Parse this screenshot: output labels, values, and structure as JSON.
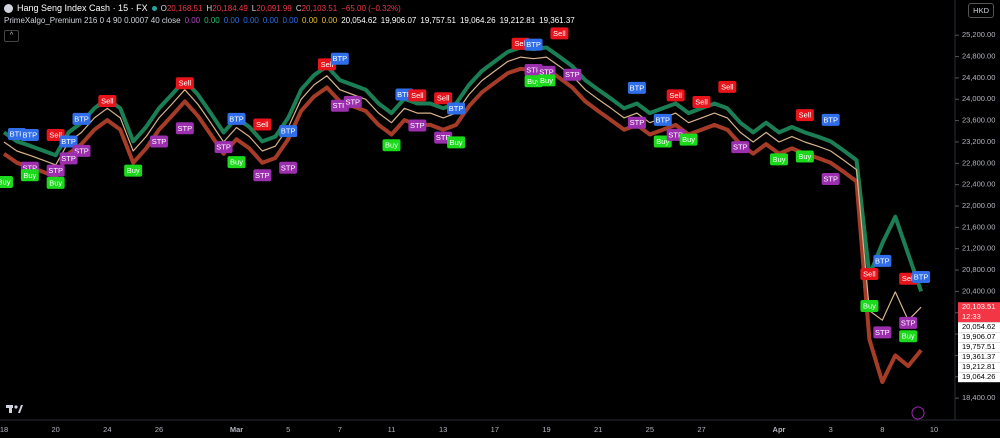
{
  "header": {
    "symbol": "Hang Seng Index Cash · 15 · FX",
    "ohlc": [
      {
        "label": "O",
        "value": "20,168.51"
      },
      {
        "label": "H",
        "value": "20,184.49"
      },
      {
        "label": "L",
        "value": "20,091.99"
      },
      {
        "label": "C",
        "value": "20,103.51"
      }
    ],
    "change": "−65.00 (−0.32%)",
    "indicator": "PrimeXalgo_Premium 216 0 4 90 0.0007 40 close",
    "indicator_values": [
      {
        "text": "0.00",
        "color": "#ab47bc"
      },
      {
        "text": "0.00",
        "color": "#26c06b"
      },
      {
        "text": "0.00",
        "color": "#2f6ee8"
      },
      {
        "text": "0.00",
        "color": "#2f6ee8"
      },
      {
        "text": "0.00",
        "color": "#2f6ee8"
      },
      {
        "text": "0.00",
        "color": "#2f6ee8"
      },
      {
        "text": "0.00",
        "color": "#e6c229"
      },
      {
        "text": "0.00",
        "color": "#e6c229"
      },
      {
        "text": "20,054.62",
        "color": "#ffffff"
      },
      {
        "text": "19,906.07",
        "color": "#ffffff"
      },
      {
        "text": "19,757.51",
        "color": "#ffffff"
      },
      {
        "text": "19,064.26",
        "color": "#ffffff"
      },
      {
        "text": "19,212.81",
        "color": "#ffffff"
      },
      {
        "text": "19,361.37",
        "color": "#ffffff"
      }
    ],
    "currency": "HKD"
  },
  "chart_data": {
    "type": "line",
    "categories": [
      "18",
      null,
      null,
      null,
      "20",
      null,
      null,
      null,
      "24",
      null,
      null,
      null,
      "26",
      null,
      null,
      null,
      null,
      null,
      "Mar",
      null,
      null,
      null,
      "5",
      null,
      null,
      null,
      "7",
      null,
      null,
      null,
      "11",
      null,
      null,
      null,
      "13",
      null,
      null,
      null,
      "17",
      null,
      null,
      null,
      "19",
      null,
      null,
      null,
      "21",
      null,
      null,
      null,
      "25",
      null,
      null,
      null,
      "27",
      null,
      null,
      null,
      null,
      null,
      "Apr",
      null,
      null,
      null,
      "3",
      null,
      null,
      null,
      "8",
      null,
      null,
      null,
      "10"
    ],
    "series": [
      {
        "color": "#1e8c5e",
        "values": [
          23380,
          23210,
          23130,
          23040,
          22950,
          23380,
          23560,
          23830,
          24010,
          23830,
          23210,
          23480,
          23830,
          24090,
          24360,
          24090,
          23740,
          23380,
          23650,
          23480,
          23210,
          23300,
          23650,
          24180,
          24450,
          24620,
          24360,
          24270,
          24180,
          23920,
          23740,
          24010,
          23920,
          23920,
          23830,
          23920,
          24270,
          24530,
          24710,
          24890,
          24970,
          24940,
          24970,
          24800,
          24620,
          24360,
          24180,
          24010,
          23830,
          23920,
          23740,
          23830,
          23920,
          23740,
          23830,
          23920,
          23830,
          23560,
          23380,
          23560,
          23380,
          23480,
          23380,
          23300,
          23210,
          23040,
          22860,
          20700,
          21300,
          21800,
          21100,
          20400,
          null
        ]
      },
      {
        "color": "#b8432c",
        "values": [
          22980,
          22810,
          22730,
          22640,
          22550,
          22980,
          23160,
          23430,
          23610,
          23430,
          22810,
          23080,
          23430,
          23690,
          23960,
          23690,
          23340,
          22980,
          23250,
          23080,
          22810,
          22900,
          23250,
          23780,
          24050,
          24220,
          23960,
          23870,
          23780,
          23520,
          23340,
          23610,
          23520,
          23520,
          23430,
          23520,
          23870,
          24130,
          24310,
          24490,
          24570,
          24540,
          24570,
          24400,
          24220,
          23960,
          23780,
          23610,
          23430,
          23520,
          23340,
          23430,
          23520,
          23340,
          23430,
          23520,
          23430,
          23160,
          22980,
          23160,
          22980,
          23080,
          22980,
          22900,
          22810,
          22640,
          22460,
          19500,
          18700,
          19200,
          19000,
          19300,
          null
        ]
      },
      {
        "color": "#d9b38c",
        "values": [
          23200,
          23030,
          22950,
          22860,
          22770,
          23200,
          23380,
          23650,
          23830,
          23650,
          23030,
          23300,
          23650,
          23910,
          24180,
          23910,
          23560,
          23200,
          23470,
          23300,
          23030,
          23120,
          23470,
          24000,
          24270,
          24440,
          24180,
          24090,
          24000,
          23740,
          23560,
          23830,
          23740,
          23740,
          23650,
          23740,
          24090,
          24350,
          24530,
          24710,
          24790,
          24760,
          24790,
          24620,
          24440,
          24180,
          24000,
          23830,
          23650,
          23740,
          23560,
          23650,
          23740,
          23560,
          23650,
          23740,
          23650,
          23380,
          23200,
          23380,
          23200,
          23300,
          23200,
          23120,
          23030,
          22860,
          22680,
          20040,
          19860,
          20390,
          19860,
          20103.51,
          null
        ]
      }
    ],
    "ylim": [
      17990,
      25860
    ],
    "yticks": [
      {
        "value": 18400,
        "label": "18,400.00"
      },
      {
        "value": 18800,
        "label": "18,800.00"
      },
      {
        "value": 19200,
        "label": "19,200.00"
      },
      {
        "value": 19600,
        "label": "19,600.00"
      },
      {
        "value": 20000,
        "label": "20,000.00"
      },
      {
        "value": 20400,
        "label": "20,400.00"
      },
      {
        "value": 20800,
        "label": "20,800.00"
      },
      {
        "value": 21200,
        "label": "21,200.00"
      },
      {
        "value": 21600,
        "label": "21,600.00"
      },
      {
        "value": 22000,
        "label": "22,000.00"
      },
      {
        "value": 22400,
        "label": "22,400.00"
      },
      {
        "value": 22800,
        "label": "22,800.00"
      },
      {
        "value": 23200,
        "label": "23,200.00"
      },
      {
        "value": 23600,
        "label": "23,600.00"
      },
      {
        "value": 24000,
        "label": "24,000.00"
      },
      {
        "value": 24400,
        "label": "24,400.00"
      },
      {
        "value": 24800,
        "label": "24,800.00"
      },
      {
        "value": 25200,
        "label": "25,200.00"
      }
    ],
    "grid": false,
    "price_labels": [
      {
        "value": 20103.51,
        "label": "20,103.51",
        "color": "#f23645",
        "sub": "12:33"
      },
      {
        "value": 20054.62,
        "label": "20,054.62",
        "color": "#ffffff"
      },
      {
        "value": 19906.07,
        "label": "19,906.07",
        "color": "#ffffff"
      },
      {
        "value": 19757.51,
        "label": "19,757.51",
        "color": "#ffffff"
      },
      {
        "value": 19361.37,
        "label": "19,361.37",
        "color": "#ffffff"
      },
      {
        "value": 19212.81,
        "label": "19,212.81",
        "color": "#ffffff"
      },
      {
        "value": 19064.26,
        "label": "19,064.26",
        "color": "#ffffff"
      }
    ],
    "label_colors": {
      "Sell": "#e8141b",
      "BTP": "#2f6ee8",
      "STP": "#9b2fae",
      "Buy": "#1bd91b"
    },
    "annotations": [
      {
        "text": "Sell",
        "x": 14,
        "y": 24300
      },
      {
        "text": "Sell",
        "x": 8,
        "y": 23967
      },
      {
        "text": "BTP",
        "x": 6,
        "y": 23632
      },
      {
        "text": "BTP",
        "x": 1,
        "y": 23350
      },
      {
        "text": "BTP",
        "x": 2,
        "y": 23330
      },
      {
        "text": "Sell",
        "x": 4,
        "y": 23330
      },
      {
        "text": "BTP",
        "x": 5,
        "y": 23209
      },
      {
        "text": "STP",
        "x": 6,
        "y": 23033
      },
      {
        "text": "STP",
        "x": 5,
        "y": 22892
      },
      {
        "text": "STP",
        "x": 2,
        "y": 22716
      },
      {
        "text": "STP",
        "x": 4,
        "y": 22663
      },
      {
        "text": "Buy",
        "x": 0,
        "y": 22450
      },
      {
        "text": "Buy",
        "x": 2,
        "y": 22575
      },
      {
        "text": "Buy",
        "x": 4,
        "y": 22434
      },
      {
        "text": "Buy",
        "x": 10,
        "y": 22663
      },
      {
        "text": "STP",
        "x": 14,
        "y": 23456
      },
      {
        "text": "STP",
        "x": 12,
        "y": 23209
      },
      {
        "text": "BTP",
        "x": 18,
        "y": 23632
      },
      {
        "text": "Sell",
        "x": 20,
        "y": 23526
      },
      {
        "text": "BTP",
        "x": 22,
        "y": 23403
      },
      {
        "text": "STP",
        "x": 17,
        "y": 23103
      },
      {
        "text": "Buy",
        "x": 18,
        "y": 22822
      },
      {
        "text": "STP",
        "x": 20,
        "y": 22575
      },
      {
        "text": "STP",
        "x": 22,
        "y": 22716
      },
      {
        "text": "Sell",
        "x": 25,
        "y": 24654
      },
      {
        "text": "BTP",
        "x": 26,
        "y": 24760
      },
      {
        "text": "STP",
        "x": 26,
        "y": 23879
      },
      {
        "text": "STP",
        "x": 27,
        "y": 23950
      },
      {
        "text": "BTP",
        "x": 31,
        "y": 24090
      },
      {
        "text": "Sell",
        "x": 32,
        "y": 24072
      },
      {
        "text": "Sell",
        "x": 34,
        "y": 24019
      },
      {
        "text": "BTP",
        "x": 35,
        "y": 23826
      },
      {
        "text": "STP",
        "x": 32,
        "y": 23509
      },
      {
        "text": "STP",
        "x": 34,
        "y": 23280
      },
      {
        "text": "Buy",
        "x": 30,
        "y": 23139
      },
      {
        "text": "Buy",
        "x": 35,
        "y": 23191
      },
      {
        "text": "Sell",
        "x": 40,
        "y": 25040
      },
      {
        "text": "BTP",
        "x": 41,
        "y": 25024
      },
      {
        "text": "Sell",
        "x": 43,
        "y": 25235
      },
      {
        "text": "STP",
        "x": 41,
        "y": 24548
      },
      {
        "text": "STP",
        "x": 42,
        "y": 24513
      },
      {
        "text": "STP",
        "x": 44,
        "y": 24460
      },
      {
        "text": "Buy",
        "x": 41,
        "y": 24337
      },
      {
        "text": "Buy",
        "x": 42,
        "y": 24354
      },
      {
        "text": "BTP",
        "x": 49,
        "y": 24213
      },
      {
        "text": "Sell",
        "x": 52,
        "y": 24072
      },
      {
        "text": "Sell",
        "x": 54,
        "y": 23949
      },
      {
        "text": "Sell",
        "x": 56,
        "y": 24231
      },
      {
        "text": "BTP",
        "x": 51,
        "y": 23614
      },
      {
        "text": "STP",
        "x": 49,
        "y": 23561
      },
      {
        "text": "Buy",
        "x": 51,
        "y": 23209
      },
      {
        "text": "STP",
        "x": 52,
        "y": 23332
      },
      {
        "text": "Buy",
        "x": 53,
        "y": 23244
      },
      {
        "text": "STP",
        "x": 57,
        "y": 23103
      },
      {
        "text": "Buy",
        "x": 60,
        "y": 22874
      },
      {
        "text": "Buy",
        "x": 62,
        "y": 22927
      },
      {
        "text": "Sell",
        "x": 62,
        "y": 23702
      },
      {
        "text": "BTP",
        "x": 64,
        "y": 23614
      },
      {
        "text": "STP",
        "x": 64,
        "y": 22505
      },
      {
        "text": "BTP",
        "x": 68,
        "y": 20972
      },
      {
        "text": "Sell",
        "x": 67,
        "y": 20725
      },
      {
        "text": "Sell",
        "x": 70,
        "y": 20637
      },
      {
        "text": "BTP",
        "x": 71,
        "y": 20670
      },
      {
        "text": "STP",
        "x": 68,
        "y": 19633
      },
      {
        "text": "STP",
        "x": 70,
        "y": 19809
      },
      {
        "text": "Buy",
        "x": 67,
        "y": 20126
      },
      {
        "text": "Buy",
        "x": 70,
        "y": 19560
      }
    ]
  }
}
